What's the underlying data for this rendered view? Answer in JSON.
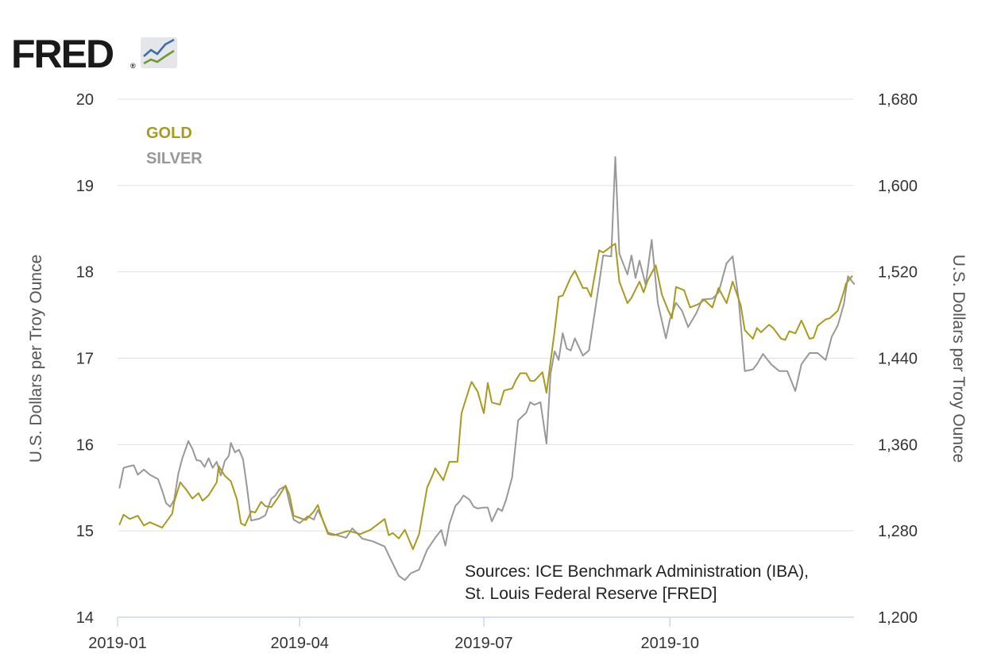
{
  "logo": {
    "text": "FRED",
    "mark": "®"
  },
  "colors": {
    "gold": "#A89A1E",
    "silver": "#989898",
    "grid": "#E0E0E0",
    "axis": "#CCD6EB"
  },
  "sources": {
    "line1": "Sources:  ICE Benchmark Administration (IBA),",
    "line2": "St. Louis Federal Reserve [FRED]"
  },
  "chart_data": {
    "type": "line",
    "title": "",
    "xlabel": "",
    "ylabel_left": "U.S. Dollars per Troy Ounce",
    "ylabel_right": "U.S. Dollars per Troy Ounce",
    "legend": [
      "GOLD",
      "SILVER"
    ],
    "legend_position": "top-left",
    "xlim": [
      "2019-01-01",
      "2019-12-31"
    ],
    "x_ticks": [
      {
        "date": "2019-01-01",
        "label": "2019-01"
      },
      {
        "date": "2019-04-01",
        "label": "2019-04"
      },
      {
        "date": "2019-07-01",
        "label": "2019-07"
      },
      {
        "date": "2019-10-01",
        "label": "2019-10"
      }
    ],
    "y_left": {
      "min": 14,
      "max": 20,
      "ticks": [
        14,
        15,
        16,
        17,
        18,
        19,
        20
      ],
      "tick_labels": [
        "14",
        "15",
        "16",
        "17",
        "18",
        "19",
        "20"
      ]
    },
    "y_right": {
      "min": 1200,
      "max": 1680,
      "ticks": [
        1200,
        1280,
        1360,
        1440,
        1520,
        1600,
        1680
      ],
      "tick_labels": [
        "1,200",
        "1,280",
        "1,360",
        "1,440",
        "1,520",
        "1,600",
        "1,680"
      ]
    },
    "series": [
      {
        "name": "GOLD",
        "axis": "right",
        "points": [
          [
            "2019-01-02",
            1286
          ],
          [
            "2019-01-04",
            1295
          ],
          [
            "2019-01-07",
            1291
          ],
          [
            "2019-01-11",
            1294
          ],
          [
            "2019-01-14",
            1285
          ],
          [
            "2019-01-17",
            1288
          ],
          [
            "2019-01-23",
            1283
          ],
          [
            "2019-01-28",
            1296
          ],
          [
            "2019-01-29",
            1307
          ],
          [
            "2019-01-31",
            1319
          ],
          [
            "2019-02-01",
            1325
          ],
          [
            "2019-02-04",
            1318
          ],
          [
            "2019-02-07",
            1310
          ],
          [
            "2019-02-10",
            1315
          ],
          [
            "2019-02-12",
            1308
          ],
          [
            "2019-02-15",
            1313
          ],
          [
            "2019-02-19",
            1325
          ],
          [
            "2019-02-20",
            1340
          ],
          [
            "2019-02-23",
            1331
          ],
          [
            "2019-02-26",
            1326
          ],
          [
            "2019-03-01",
            1309
          ],
          [
            "2019-03-03",
            1287
          ],
          [
            "2019-03-05",
            1285
          ],
          [
            "2019-03-08",
            1298
          ],
          [
            "2019-03-10",
            1297
          ],
          [
            "2019-03-13",
            1307
          ],
          [
            "2019-03-15",
            1303
          ],
          [
            "2019-03-18",
            1302
          ],
          [
            "2019-03-21",
            1310
          ],
          [
            "2019-03-25",
            1322
          ],
          [
            "2019-03-27",
            1313
          ],
          [
            "2019-03-29",
            1294
          ],
          [
            "2019-04-01",
            1292
          ],
          [
            "2019-04-04",
            1290
          ],
          [
            "2019-04-08",
            1298
          ],
          [
            "2019-04-10",
            1304
          ],
          [
            "2019-04-12",
            1292
          ],
          [
            "2019-04-15",
            1277
          ],
          [
            "2019-04-18",
            1276
          ],
          [
            "2019-04-25",
            1280
          ],
          [
            "2019-05-01",
            1277
          ],
          [
            "2019-05-06",
            1281
          ],
          [
            "2019-05-13",
            1291
          ],
          [
            "2019-05-15",
            1276
          ],
          [
            "2019-05-17",
            1278
          ],
          [
            "2019-05-20",
            1273
          ],
          [
            "2019-05-23",
            1281
          ],
          [
            "2019-05-27",
            1263
          ],
          [
            "2019-05-30",
            1277
          ],
          [
            "2019-06-03",
            1320
          ],
          [
            "2019-06-06",
            1333
          ],
          [
            "2019-06-07",
            1338
          ],
          [
            "2019-06-11",
            1327
          ],
          [
            "2019-06-14",
            1344
          ],
          [
            "2019-06-18",
            1344
          ],
          [
            "2019-06-20",
            1389
          ],
          [
            "2019-06-24",
            1413
          ],
          [
            "2019-06-25",
            1418
          ],
          [
            "2019-06-28",
            1409
          ],
          [
            "2019-07-01",
            1389
          ],
          [
            "2019-07-03",
            1417
          ],
          [
            "2019-07-05",
            1399
          ],
          [
            "2019-07-09",
            1397
          ],
          [
            "2019-07-11",
            1410
          ],
          [
            "2019-07-15",
            1412
          ],
          [
            "2019-07-17",
            1420
          ],
          [
            "2019-07-19",
            1426
          ],
          [
            "2019-07-22",
            1426
          ],
          [
            "2019-07-24",
            1419
          ],
          [
            "2019-07-26",
            1419
          ],
          [
            "2019-07-30",
            1427
          ],
          [
            "2019-08-01",
            1408
          ],
          [
            "2019-08-05",
            1465
          ],
          [
            "2019-08-07",
            1497
          ],
          [
            "2019-08-09",
            1498
          ],
          [
            "2019-08-13",
            1515
          ],
          [
            "2019-08-15",
            1521
          ],
          [
            "2019-08-19",
            1505
          ],
          [
            "2019-08-21",
            1505
          ],
          [
            "2019-08-23",
            1497
          ],
          [
            "2019-08-27",
            1540
          ],
          [
            "2019-08-29",
            1538
          ],
          [
            "2019-09-03",
            1545
          ],
          [
            "2019-09-04",
            1546
          ],
          [
            "2019-09-06",
            1511
          ],
          [
            "2019-09-10",
            1491
          ],
          [
            "2019-09-12",
            1496
          ],
          [
            "2019-09-16",
            1511
          ],
          [
            "2019-09-18",
            1501
          ],
          [
            "2019-09-20",
            1512
          ],
          [
            "2019-09-24",
            1526
          ],
          [
            "2019-09-27",
            1499
          ],
          [
            "2019-09-30",
            1485
          ],
          [
            "2019-10-02",
            1477
          ],
          [
            "2019-10-04",
            1506
          ],
          [
            "2019-10-08",
            1503
          ],
          [
            "2019-10-11",
            1487
          ],
          [
            "2019-10-15",
            1490
          ],
          [
            "2019-10-18",
            1494
          ],
          [
            "2019-10-22",
            1487
          ],
          [
            "2019-10-25",
            1505
          ],
          [
            "2019-10-29",
            1491
          ],
          [
            "2019-11-01",
            1511
          ],
          [
            "2019-11-05",
            1489
          ],
          [
            "2019-11-07",
            1466
          ],
          [
            "2019-11-11",
            1458
          ],
          [
            "2019-11-13",
            1468
          ],
          [
            "2019-11-15",
            1464
          ],
          [
            "2019-11-19",
            1471
          ],
          [
            "2019-11-21",
            1468
          ],
          [
            "2019-11-25",
            1458
          ],
          [
            "2019-11-27",
            1457
          ],
          [
            "2019-11-29",
            1465
          ],
          [
            "2019-12-02",
            1463
          ],
          [
            "2019-12-05",
            1475
          ],
          [
            "2019-12-09",
            1458
          ],
          [
            "2019-12-11",
            1459
          ],
          [
            "2019-12-13",
            1470
          ],
          [
            "2019-12-17",
            1476
          ],
          [
            "2019-12-19",
            1477
          ],
          [
            "2019-12-23",
            1484
          ],
          [
            "2019-12-26",
            1502
          ],
          [
            "2019-12-27",
            1509
          ],
          [
            "2019-12-30",
            1516
          ]
        ]
      },
      {
        "name": "SILVER",
        "axis": "left",
        "points": [
          [
            "2019-01-02",
            15.5
          ],
          [
            "2019-01-04",
            15.73
          ],
          [
            "2019-01-07",
            15.75
          ],
          [
            "2019-01-09",
            15.76
          ],
          [
            "2019-01-11",
            15.65
          ],
          [
            "2019-01-14",
            15.71
          ],
          [
            "2019-01-17",
            15.65
          ],
          [
            "2019-01-21",
            15.6
          ],
          [
            "2019-01-23",
            15.47
          ],
          [
            "2019-01-25",
            15.32
          ],
          [
            "2019-01-27",
            15.28
          ],
          [
            "2019-01-29",
            15.36
          ],
          [
            "2019-01-31",
            15.66
          ],
          [
            "2019-02-02",
            15.84
          ],
          [
            "2019-02-05",
            16.04
          ],
          [
            "2019-02-07",
            15.95
          ],
          [
            "2019-02-09",
            15.82
          ],
          [
            "2019-02-11",
            15.81
          ],
          [
            "2019-02-13",
            15.74
          ],
          [
            "2019-02-15",
            15.84
          ],
          [
            "2019-02-17",
            15.73
          ],
          [
            "2019-02-19",
            15.8
          ],
          [
            "2019-02-21",
            15.64
          ],
          [
            "2019-02-23",
            15.81
          ],
          [
            "2019-02-25",
            15.87
          ],
          [
            "2019-02-26",
            16.02
          ],
          [
            "2019-02-28",
            15.91
          ],
          [
            "2019-03-02",
            15.94
          ],
          [
            "2019-03-04",
            15.83
          ],
          [
            "2019-03-06",
            15.5
          ],
          [
            "2019-03-08",
            15.12
          ],
          [
            "2019-03-12",
            15.14
          ],
          [
            "2019-03-15",
            15.18
          ],
          [
            "2019-03-18",
            15.37
          ],
          [
            "2019-03-20",
            15.41
          ],
          [
            "2019-03-22",
            15.48
          ],
          [
            "2019-03-25",
            15.52
          ],
          [
            "2019-03-27",
            15.32
          ],
          [
            "2019-03-29",
            15.13
          ],
          [
            "2019-04-01",
            15.09
          ],
          [
            "2019-04-03",
            15.13
          ],
          [
            "2019-04-05",
            15.17
          ],
          [
            "2019-04-08",
            15.13
          ],
          [
            "2019-04-10",
            15.24
          ],
          [
            "2019-04-12",
            15.15
          ],
          [
            "2019-04-15",
            14.98
          ],
          [
            "2019-04-18",
            14.96
          ],
          [
            "2019-04-24",
            14.92
          ],
          [
            "2019-04-27",
            15.03
          ],
          [
            "2019-05-02",
            14.91
          ],
          [
            "2019-05-07",
            14.88
          ],
          [
            "2019-05-09",
            14.86
          ],
          [
            "2019-05-13",
            14.82
          ],
          [
            "2019-05-16",
            14.67
          ],
          [
            "2019-05-20",
            14.48
          ],
          [
            "2019-05-23",
            14.43
          ],
          [
            "2019-05-26",
            14.51
          ],
          [
            "2019-05-30",
            14.55
          ],
          [
            "2019-06-03",
            14.78
          ],
          [
            "2019-06-07",
            14.92
          ],
          [
            "2019-06-10",
            15.01
          ],
          [
            "2019-06-12",
            14.83
          ],
          [
            "2019-06-14",
            15.08
          ],
          [
            "2019-06-17",
            15.29
          ],
          [
            "2019-06-19",
            15.34
          ],
          [
            "2019-06-21",
            15.41
          ],
          [
            "2019-06-24",
            15.36
          ],
          [
            "2019-06-26",
            15.28
          ],
          [
            "2019-06-28",
            15.26
          ],
          [
            "2019-07-01",
            15.27
          ],
          [
            "2019-07-03",
            15.27
          ],
          [
            "2019-07-05",
            15.11
          ],
          [
            "2019-07-08",
            15.26
          ],
          [
            "2019-07-10",
            15.23
          ],
          [
            "2019-07-12",
            15.36
          ],
          [
            "2019-07-15",
            15.62
          ],
          [
            "2019-07-18",
            16.28
          ],
          [
            "2019-07-22",
            16.37
          ],
          [
            "2019-07-24",
            16.49
          ],
          [
            "2019-07-26",
            16.46
          ],
          [
            "2019-07-29",
            16.49
          ],
          [
            "2019-08-01",
            16.01
          ],
          [
            "2019-08-03",
            16.82
          ],
          [
            "2019-08-05",
            17.08
          ],
          [
            "2019-08-07",
            16.98
          ],
          [
            "2019-08-09",
            17.29
          ],
          [
            "2019-08-11",
            17.11
          ],
          [
            "2019-08-13",
            17.09
          ],
          [
            "2019-08-15",
            17.23
          ],
          [
            "2019-08-19",
            17.03
          ],
          [
            "2019-08-22",
            17.09
          ],
          [
            "2019-08-27",
            17.86
          ],
          [
            "2019-08-29",
            18.19
          ],
          [
            "2019-09-02",
            18.18
          ],
          [
            "2019-09-04",
            19.33
          ],
          [
            "2019-09-06",
            18.21
          ],
          [
            "2019-09-10",
            17.97
          ],
          [
            "2019-09-12",
            18.19
          ],
          [
            "2019-09-14",
            17.93
          ],
          [
            "2019-09-16",
            18.13
          ],
          [
            "2019-09-19",
            17.85
          ],
          [
            "2019-09-22",
            18.37
          ],
          [
            "2019-09-25",
            17.64
          ],
          [
            "2019-09-29",
            17.23
          ],
          [
            "2019-10-01",
            17.45
          ],
          [
            "2019-10-04",
            17.64
          ],
          [
            "2019-10-07",
            17.55
          ],
          [
            "2019-10-10",
            17.36
          ],
          [
            "2019-10-14",
            17.52
          ],
          [
            "2019-10-17",
            17.68
          ],
          [
            "2019-10-22",
            17.69
          ],
          [
            "2019-10-25",
            17.76
          ],
          [
            "2019-10-29",
            18.1
          ],
          [
            "2019-11-01",
            18.18
          ],
          [
            "2019-11-04",
            17.68
          ],
          [
            "2019-11-07",
            16.85
          ],
          [
            "2019-11-11",
            16.87
          ],
          [
            "2019-11-13",
            16.93
          ],
          [
            "2019-11-16",
            17.05
          ],
          [
            "2019-11-20",
            16.93
          ],
          [
            "2019-11-24",
            16.85
          ],
          [
            "2019-11-28",
            16.85
          ],
          [
            "2019-12-02",
            16.62
          ],
          [
            "2019-12-05",
            16.93
          ],
          [
            "2019-12-09",
            17.06
          ],
          [
            "2019-12-13",
            17.06
          ],
          [
            "2019-12-17",
            16.98
          ],
          [
            "2019-12-20",
            17.25
          ],
          [
            "2019-12-23",
            17.38
          ],
          [
            "2019-12-26",
            17.63
          ],
          [
            "2019-12-28",
            17.95
          ],
          [
            "2019-12-31",
            17.86
          ]
        ]
      }
    ]
  }
}
